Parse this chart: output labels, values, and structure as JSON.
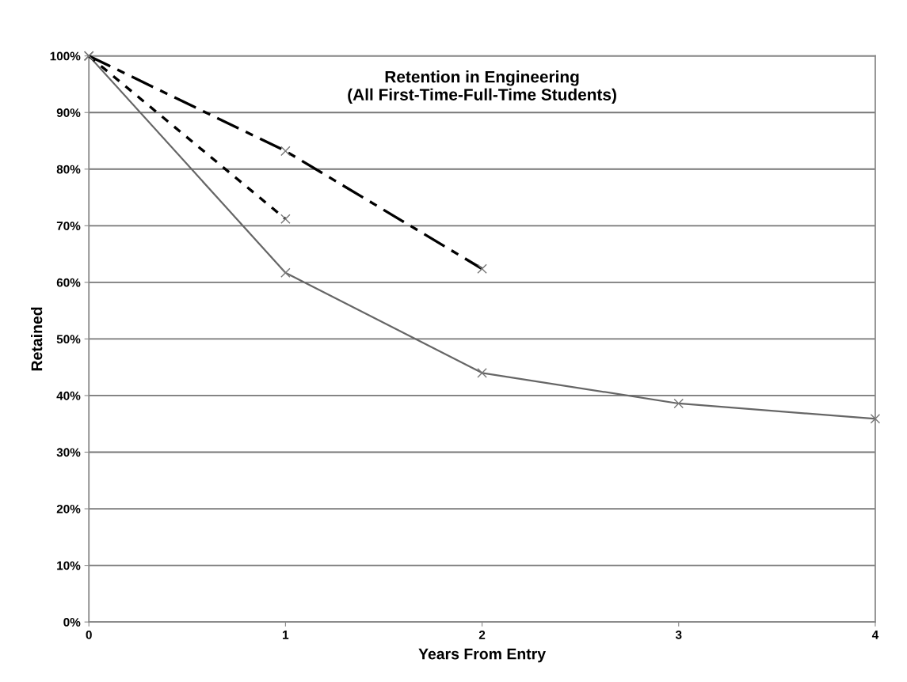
{
  "chart_data": {
    "type": "line",
    "title": "Retention in Engineering\n(All First-Time-Full-Time Students)",
    "xlabel": "Years From Entry",
    "ylabel": "Retained",
    "x": [
      0,
      1,
      2,
      3,
      4
    ],
    "series": [
      {
        "color": "#666666",
        "line_style": "solid",
        "values": [
          100,
          61.7,
          44.0,
          38.6,
          35.9
        ]
      },
      {
        "color": "#000000",
        "line_style": "dotted",
        "values": [
          100,
          71.2,
          null,
          null,
          null
        ]
      },
      {
        "color": "#000000",
        "line_style": "dashed",
        "values": [
          100,
          83.2,
          62.4,
          null,
          null
        ]
      }
    ],
    "xlim": [
      0,
      4
    ],
    "xticks": [
      0,
      1,
      2,
      3,
      4
    ],
    "ylim": [
      0,
      100
    ],
    "yticks": [
      {
        "value": 0,
        "label": "0%"
      },
      {
        "value": 10,
        "label": "10%"
      },
      {
        "value": 20,
        "label": "20%"
      },
      {
        "value": 30,
        "label": "30%"
      },
      {
        "value": 40,
        "label": "40%"
      },
      {
        "value": 50,
        "label": "50%"
      },
      {
        "value": 60,
        "label": "60%"
      },
      {
        "value": 70,
        "label": "70%"
      },
      {
        "value": 80,
        "label": "80%"
      },
      {
        "value": 90,
        "label": "90%"
      },
      {
        "value": 100,
        "label": "100%"
      }
    ],
    "grid": "y",
    "marker": "cross",
    "legend": false
  }
}
